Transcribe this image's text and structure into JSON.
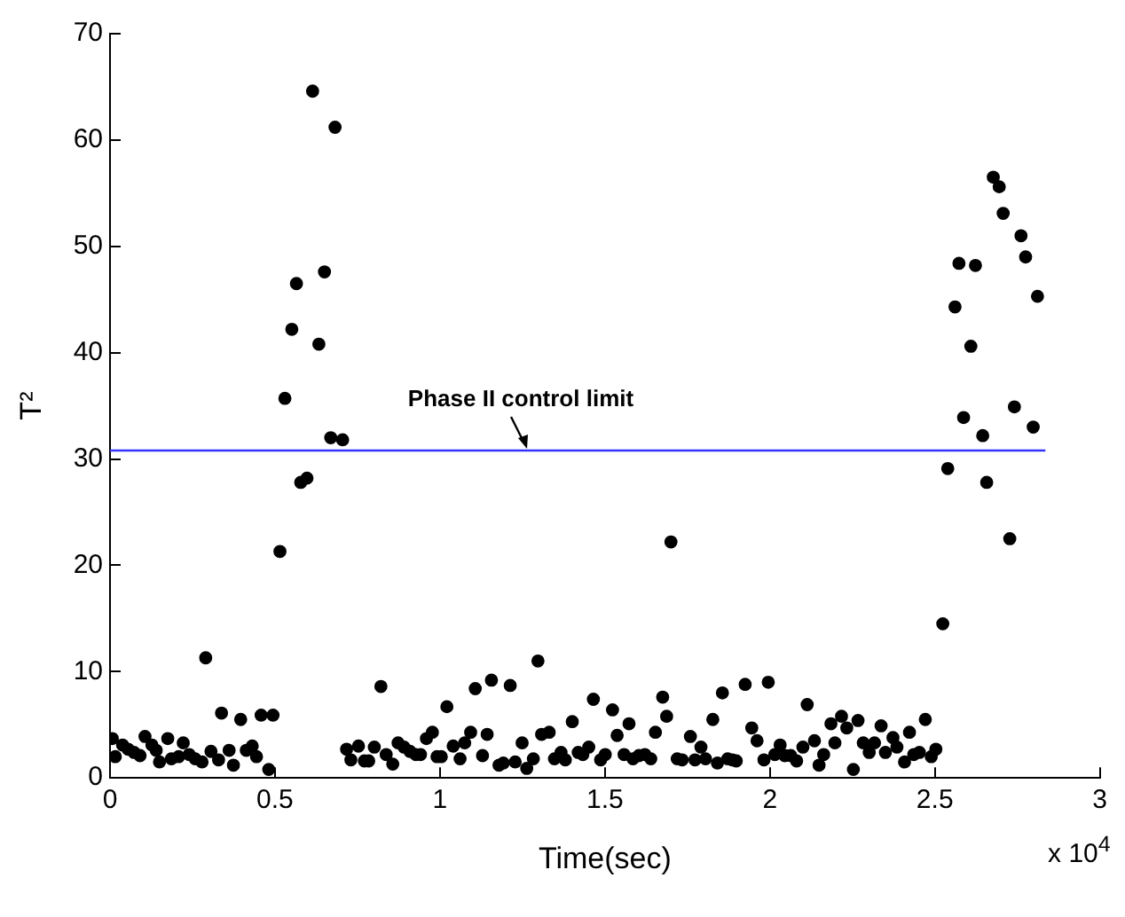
{
  "chart_data": {
    "type": "scatter",
    "xlabel": "Time(sec)",
    "ylabel": "T²",
    "xlim": [
      0,
      3
    ],
    "xticks": [
      0,
      0.5,
      1,
      1.5,
      2,
      2.5,
      3
    ],
    "ylim": [
      0,
      70
    ],
    "yticks": [
      0,
      10,
      20,
      30,
      40,
      50,
      60,
      70
    ],
    "grid": false,
    "legend": false,
    "marker": "circle",
    "annotations": [
      "x 10$^{4}$"
    ],
    "ref_lines": [
      {
        "axis": "y",
        "value": 30.8,
        "label": "Phase II control limit",
        "color": "#3333ff"
      }
    ],
    "series": [
      {
        "color": "#000000",
        "x": [
          0.007,
          0.016,
          0.038,
          0.055,
          0.073,
          0.091,
          0.106,
          0.127,
          0.14,
          0.15,
          0.175,
          0.186,
          0.208,
          0.222,
          0.24,
          0.258,
          0.279,
          0.29,
          0.306,
          0.329,
          0.338,
          0.361,
          0.374,
          0.396,
          0.413,
          0.431,
          0.444,
          0.458,
          0.481,
          0.494,
          0.515,
          0.53,
          0.551,
          0.565,
          0.578,
          0.597,
          0.614,
          0.633,
          0.65,
          0.669,
          0.682,
          0.705,
          0.717,
          0.73,
          0.753,
          0.771,
          0.784,
          0.801,
          0.821,
          0.837,
          0.857,
          0.873,
          0.891,
          0.909,
          0.927,
          0.941,
          0.959,
          0.977,
          0.991,
          1.004,
          1.021,
          1.04,
          1.061,
          1.075,
          1.093,
          1.107,
          1.129,
          1.143,
          1.156,
          1.179,
          1.192,
          1.213,
          1.228,
          1.249,
          1.263,
          1.283,
          1.297,
          1.308,
          1.331,
          1.347,
          1.367,
          1.38,
          1.401,
          1.419,
          1.433,
          1.451,
          1.465,
          1.487,
          1.501,
          1.523,
          1.537,
          1.558,
          1.573,
          1.585,
          1.603,
          1.621,
          1.639,
          1.653,
          1.675,
          1.687,
          1.7,
          1.719,
          1.734,
          1.759,
          1.773,
          1.791,
          1.805,
          1.827,
          1.841,
          1.856,
          1.872,
          1.886,
          1.898,
          1.925,
          1.945,
          1.961,
          1.982,
          1.995,
          2.015,
          2.031,
          2.045,
          2.063,
          2.081,
          2.1,
          2.113,
          2.135,
          2.149,
          2.163,
          2.185,
          2.197,
          2.217,
          2.233,
          2.253,
          2.267,
          2.283,
          2.301,
          2.317,
          2.337,
          2.35,
          2.373,
          2.385,
          2.408,
          2.423,
          2.436,
          2.453,
          2.471,
          2.489,
          2.503,
          2.524,
          2.539,
          2.561,
          2.573,
          2.587,
          2.609,
          2.623,
          2.645,
          2.657,
          2.677,
          2.695,
          2.707,
          2.727,
          2.741,
          2.761,
          2.775,
          2.798,
          2.811
        ],
        "values": [
          3.7,
          2.0,
          3.1,
          2.7,
          2.4,
          2.1,
          3.9,
          3.1,
          2.6,
          1.5,
          3.7,
          1.8,
          2.0,
          3.3,
          2.2,
          1.8,
          1.5,
          11.3,
          2.5,
          1.7,
          6.1,
          2.6,
          1.2,
          5.5,
          2.6,
          3.0,
          2.0,
          5.9,
          0.8,
          5.9,
          21.3,
          35.7,
          42.2,
          46.5,
          27.8,
          28.2,
          64.6,
          40.8,
          47.6,
          32.0,
          61.2,
          31.8,
          2.7,
          1.7,
          3.0,
          1.6,
          1.6,
          2.9,
          8.6,
          2.2,
          1.3,
          3.3,
          2.9,
          2.5,
          2.2,
          2.2,
          3.7,
          4.3,
          2.0,
          2.0,
          6.7,
          3.0,
          1.8,
          3.3,
          4.3,
          8.4,
          2.1,
          4.1,
          9.2,
          1.2,
          1.4,
          8.7,
          1.5,
          3.3,
          0.9,
          1.8,
          11.0,
          4.1,
          4.3,
          1.8,
          2.4,
          1.7,
          5.3,
          2.4,
          2.2,
          2.9,
          7.4,
          1.7,
          2.2,
          6.4,
          4.0,
          2.2,
          5.1,
          1.8,
          2.1,
          2.2,
          1.8,
          4.3,
          7.6,
          5.8,
          22.2,
          1.8,
          1.7,
          3.9,
          1.7,
          2.9,
          1.8,
          5.5,
          1.4,
          8.0,
          1.8,
          1.7,
          1.6,
          8.8,
          4.7,
          3.5,
          1.7,
          9.0,
          2.2,
          3.1,
          2.1,
          2.1,
          1.6,
          2.9,
          6.9,
          3.5,
          1.2,
          2.2,
          5.1,
          3.3,
          5.8,
          4.7,
          0.8,
          5.4,
          3.3,
          2.4,
          3.3,
          4.9,
          2.4,
          3.8,
          2.9,
          1.5,
          4.3,
          2.2,
          2.4,
          5.5,
          2.0,
          2.7,
          14.5,
          29.1,
          44.3,
          48.4,
          33.9,
          40.6,
          48.2,
          32.2,
          27.8,
          56.5,
          55.6,
          53.1,
          22.5,
          34.9,
          51.0,
          49.0,
          33.0,
          45.3
        ]
      }
    ]
  }
}
